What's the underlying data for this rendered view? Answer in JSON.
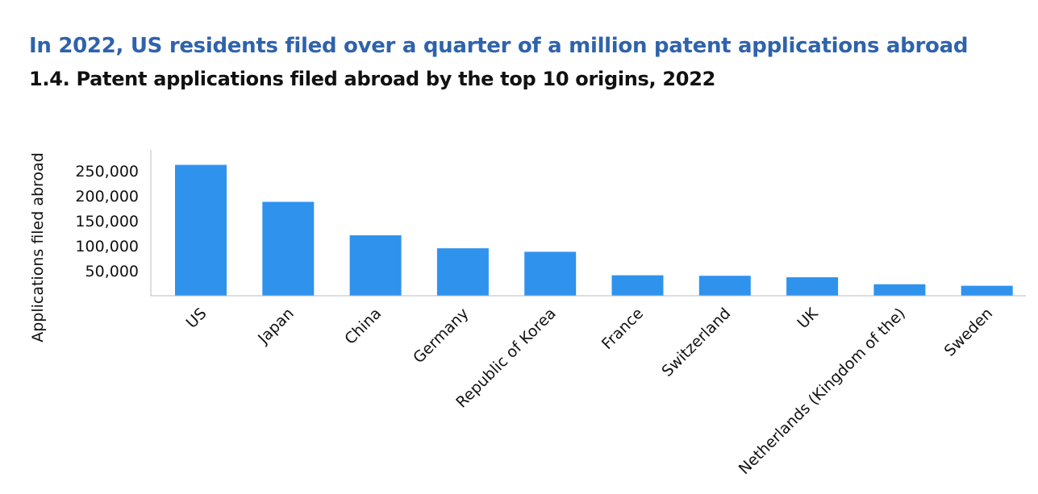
{
  "header": {
    "headline": "In 2022, US residents filed over a quarter of a million patent applications abroad",
    "subtitle": "1.4. Patent applications filed abroad by the top 10 origins, 2022"
  },
  "colors": {
    "headline": "#2f63ab",
    "bar": "#2f93ee",
    "axis": "#bbbbbb"
  },
  "chart_data": {
    "type": "bar",
    "title": "1.4. Patent applications filed abroad by the top 10 origins, 2022",
    "xlabel": "",
    "ylabel": "Applications filed abroad",
    "categories": [
      "US",
      "Japan",
      "China",
      "Germany",
      "Republic of Korea",
      "France",
      "Switzerland",
      "UK",
      "Netherlands (Kingdom of the)",
      "Sweden"
    ],
    "values": [
      262000,
      188000,
      121000,
      95000,
      88000,
      41000,
      40000,
      37000,
      23000,
      20000
    ],
    "yticks": [
      50000,
      100000,
      150000,
      200000,
      250000
    ],
    "ytick_labels": [
      "50,000",
      "100,000",
      "150,000",
      "200,000",
      "250,000"
    ],
    "ylim": [
      0,
      290000
    ],
    "grid": false,
    "legend": "none"
  }
}
